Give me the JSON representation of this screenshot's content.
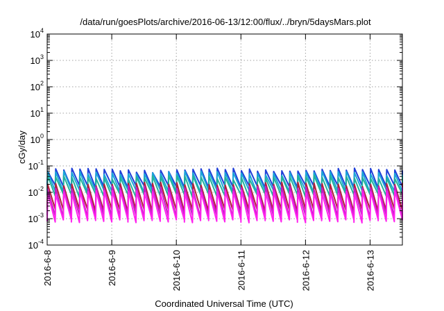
{
  "chart_data": {
    "type": "line",
    "title": "/data/run/goesPlots/archive/2016-06-13/12:00/flux/../bryn/5daysMars.plot",
    "xlabel": "Coordinated Universal Time (UTC)",
    "ylabel": "cGy/day",
    "yscale": "log",
    "ylim": [
      0.0001,
      10000
    ],
    "y_ticks": [
      {
        "base": "10",
        "exp": "-4"
      },
      {
        "base": "10",
        "exp": "-3"
      },
      {
        "base": "10",
        "exp": "-2"
      },
      {
        "base": "10",
        "exp": "-1"
      },
      {
        "base": "10",
        "exp": "0"
      },
      {
        "base": "10",
        "exp": "1"
      },
      {
        "base": "10",
        "exp": "2"
      },
      {
        "base": "10",
        "exp": "3"
      },
      {
        "base": "10",
        "exp": "4"
      }
    ],
    "xlim": [
      "2016-06-08 00:00",
      "2016-06-13 12:00"
    ],
    "x_ticks": [
      "2016-6-8",
      "2016-6-9",
      "2016-6-10",
      "2016-6-11",
      "2016-6-12",
      "2016-6-13"
    ],
    "grid": true,
    "legend": "none",
    "sawtooth_period_hours": 3,
    "series": [
      {
        "color": "#1f3fd8",
        "peak": 0.075,
        "trough": 0.016
      },
      {
        "color": "#1aa6d8",
        "peak": 0.058,
        "trough": 0.011
      },
      {
        "color": "#22b39a",
        "peak": 0.04,
        "trough": 0.0075
      },
      {
        "color": "#b41e3a",
        "peak": 0.022,
        "trough": 0.002
      },
      {
        "color": "#c21fc8",
        "peak": 0.016,
        "trough": 0.0012
      },
      {
        "color": "#ff22ee",
        "peak": 0.011,
        "trough": 0.0008
      }
    ]
  }
}
